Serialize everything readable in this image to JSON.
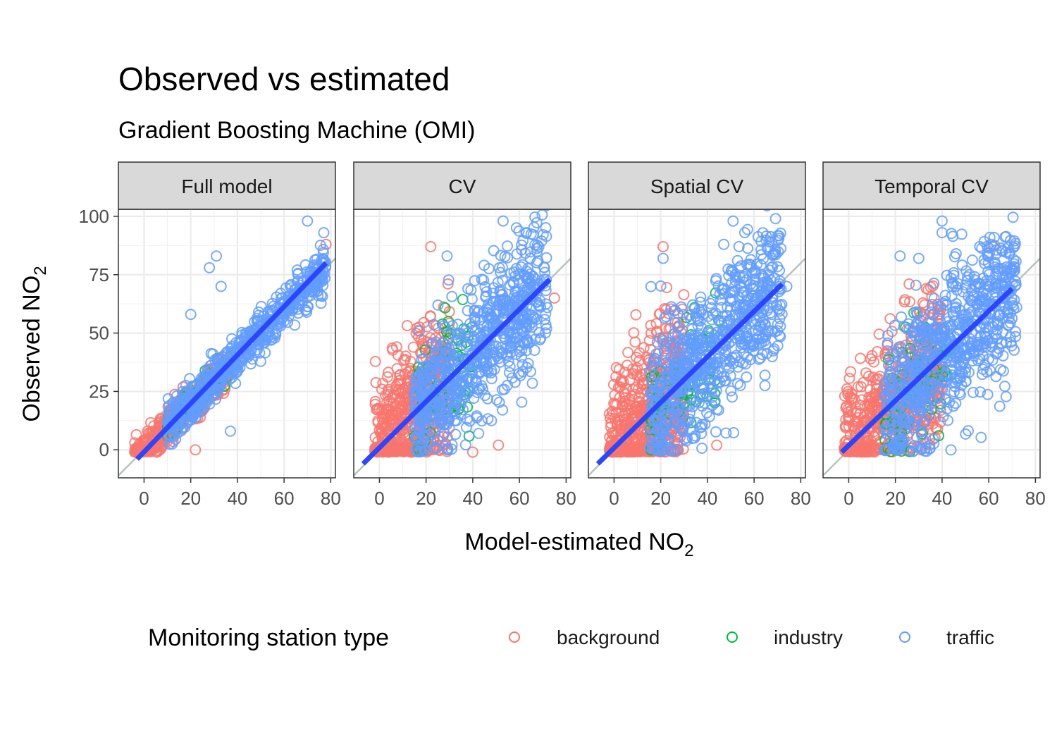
{
  "chart_data": {
    "type": "scatter",
    "title": "Observed vs estimated",
    "subtitle": "Gradient Boosting Machine (OMI)",
    "xlabel": "Model-estimated NO₂",
    "ylabel": "Observed NO₂",
    "xlim": [
      -11,
      82
    ],
    "ylim": [
      -12,
      103
    ],
    "x_ticks": [
      0,
      20,
      40,
      60,
      80
    ],
    "y_ticks": [
      0,
      25,
      50,
      75,
      100
    ],
    "grid": true,
    "legend": {
      "title": "Monitoring station type",
      "position": "bottom",
      "items": [
        {
          "label": "background",
          "color": "#F8766D"
        },
        {
          "label": "industry",
          "color": "#00BA38"
        },
        {
          "label": "traffic",
          "color": "#619CFF"
        }
      ]
    },
    "reference_line": {
      "slope": 1,
      "intercept": 0,
      "color": "#b7c4bd"
    },
    "fit_line_color": "#2c45ff",
    "panels": [
      {
        "label": "Full model",
        "fit_line": {
          "x": [
            -3,
            78
          ],
          "y": [
            -4,
            80
          ]
        },
        "clouds": [
          {
            "series": "background",
            "n": 500,
            "x_range": [
              -4,
              35
            ],
            "spread": 3.5,
            "seed": 11
          },
          {
            "series": "industry",
            "n": 60,
            "x_range": [
              10,
              40
            ],
            "spread": 4,
            "seed": 12
          },
          {
            "series": "traffic",
            "n": 600,
            "x_range": [
              10,
              78
            ],
            "spread": 4.5,
            "seed": 13
          }
        ],
        "outliers": [
          {
            "series": "traffic",
            "x": 70,
            "y": 98
          },
          {
            "series": "traffic",
            "x": 77,
            "y": 93
          },
          {
            "series": "traffic",
            "x": 31,
            "y": 83
          },
          {
            "series": "traffic",
            "x": 28,
            "y": 78
          },
          {
            "series": "traffic",
            "x": 33,
            "y": 70
          },
          {
            "series": "traffic",
            "x": 20,
            "y": 58
          },
          {
            "series": "traffic",
            "x": 37,
            "y": 8
          },
          {
            "series": "background",
            "x": 78,
            "y": 88
          },
          {
            "series": "background",
            "x": 22,
            "y": 0
          }
        ]
      },
      {
        "label": "CV",
        "fit_line": {
          "x": [
            -7,
            73
          ],
          "y": [
            -6,
            73
          ]
        },
        "clouds": [
          {
            "series": "background",
            "n": 600,
            "x_range": [
              -2,
              30
            ],
            "spread": 16,
            "seed": 21
          },
          {
            "series": "industry",
            "n": 70,
            "x_range": [
              15,
              40
            ],
            "spread": 12,
            "seed": 22
          },
          {
            "series": "traffic",
            "n": 700,
            "x_range": [
              15,
              72
            ],
            "spread": 14,
            "seed": 23
          }
        ],
        "outliers": [
          {
            "series": "traffic",
            "x": 53,
            "y": 98
          },
          {
            "series": "traffic",
            "x": 63,
            "y": 93
          },
          {
            "series": "traffic",
            "x": 29,
            "y": 83
          },
          {
            "series": "background",
            "x": 22,
            "y": 87
          },
          {
            "series": "background",
            "x": 75,
            "y": 65
          },
          {
            "series": "background",
            "x": 40,
            "y": -1
          },
          {
            "series": "background",
            "x": 51,
            "y": 2
          }
        ]
      },
      {
        "label": "Spatial CV",
        "fit_line": {
          "x": [
            -7,
            72
          ],
          "y": [
            -6,
            71
          ]
        },
        "clouds": [
          {
            "series": "background",
            "n": 600,
            "x_range": [
              -2,
              30
            ],
            "spread": 17,
            "seed": 31
          },
          {
            "series": "industry",
            "n": 70,
            "x_range": [
              15,
              45
            ],
            "spread": 13,
            "seed": 32
          },
          {
            "series": "traffic",
            "n": 700,
            "x_range": [
              15,
              72
            ],
            "spread": 15,
            "seed": 33
          }
        ],
        "outliers": [
          {
            "series": "traffic",
            "x": 51,
            "y": 98
          },
          {
            "series": "traffic",
            "x": 56,
            "y": 93
          },
          {
            "series": "traffic",
            "x": 47,
            "y": 88
          },
          {
            "series": "traffic",
            "x": 21,
            "y": 82
          },
          {
            "series": "background",
            "x": 21,
            "y": 87
          },
          {
            "series": "background",
            "x": 44,
            "y": 2
          },
          {
            "series": "traffic",
            "x": 74,
            "y": 70
          }
        ]
      },
      {
        "label": "Temporal CV",
        "fit_line": {
          "x": [
            -3,
            70
          ],
          "y": [
            -1,
            69
          ]
        },
        "clouds": [
          {
            "series": "background",
            "n": 600,
            "x_range": [
              -2,
              40
            ],
            "spread": 15,
            "seed": 41
          },
          {
            "series": "industry",
            "n": 70,
            "x_range": [
              15,
              45
            ],
            "spread": 14,
            "seed": 42
          },
          {
            "series": "traffic",
            "n": 700,
            "x_range": [
              15,
              72
            ],
            "spread": 16,
            "seed": 43
          }
        ],
        "outliers": [
          {
            "series": "traffic",
            "x": 40,
            "y": 98
          },
          {
            "series": "traffic",
            "x": 40,
            "y": 93
          },
          {
            "series": "traffic",
            "x": 22,
            "y": 83
          },
          {
            "series": "traffic",
            "x": 30,
            "y": 82
          },
          {
            "series": "traffic",
            "x": 46,
            "y": 84
          },
          {
            "series": "traffic",
            "x": 61,
            "y": 88
          },
          {
            "series": "background",
            "x": 62,
            "y": 87
          },
          {
            "series": "background",
            "x": 31,
            "y": 0
          }
        ]
      }
    ]
  }
}
